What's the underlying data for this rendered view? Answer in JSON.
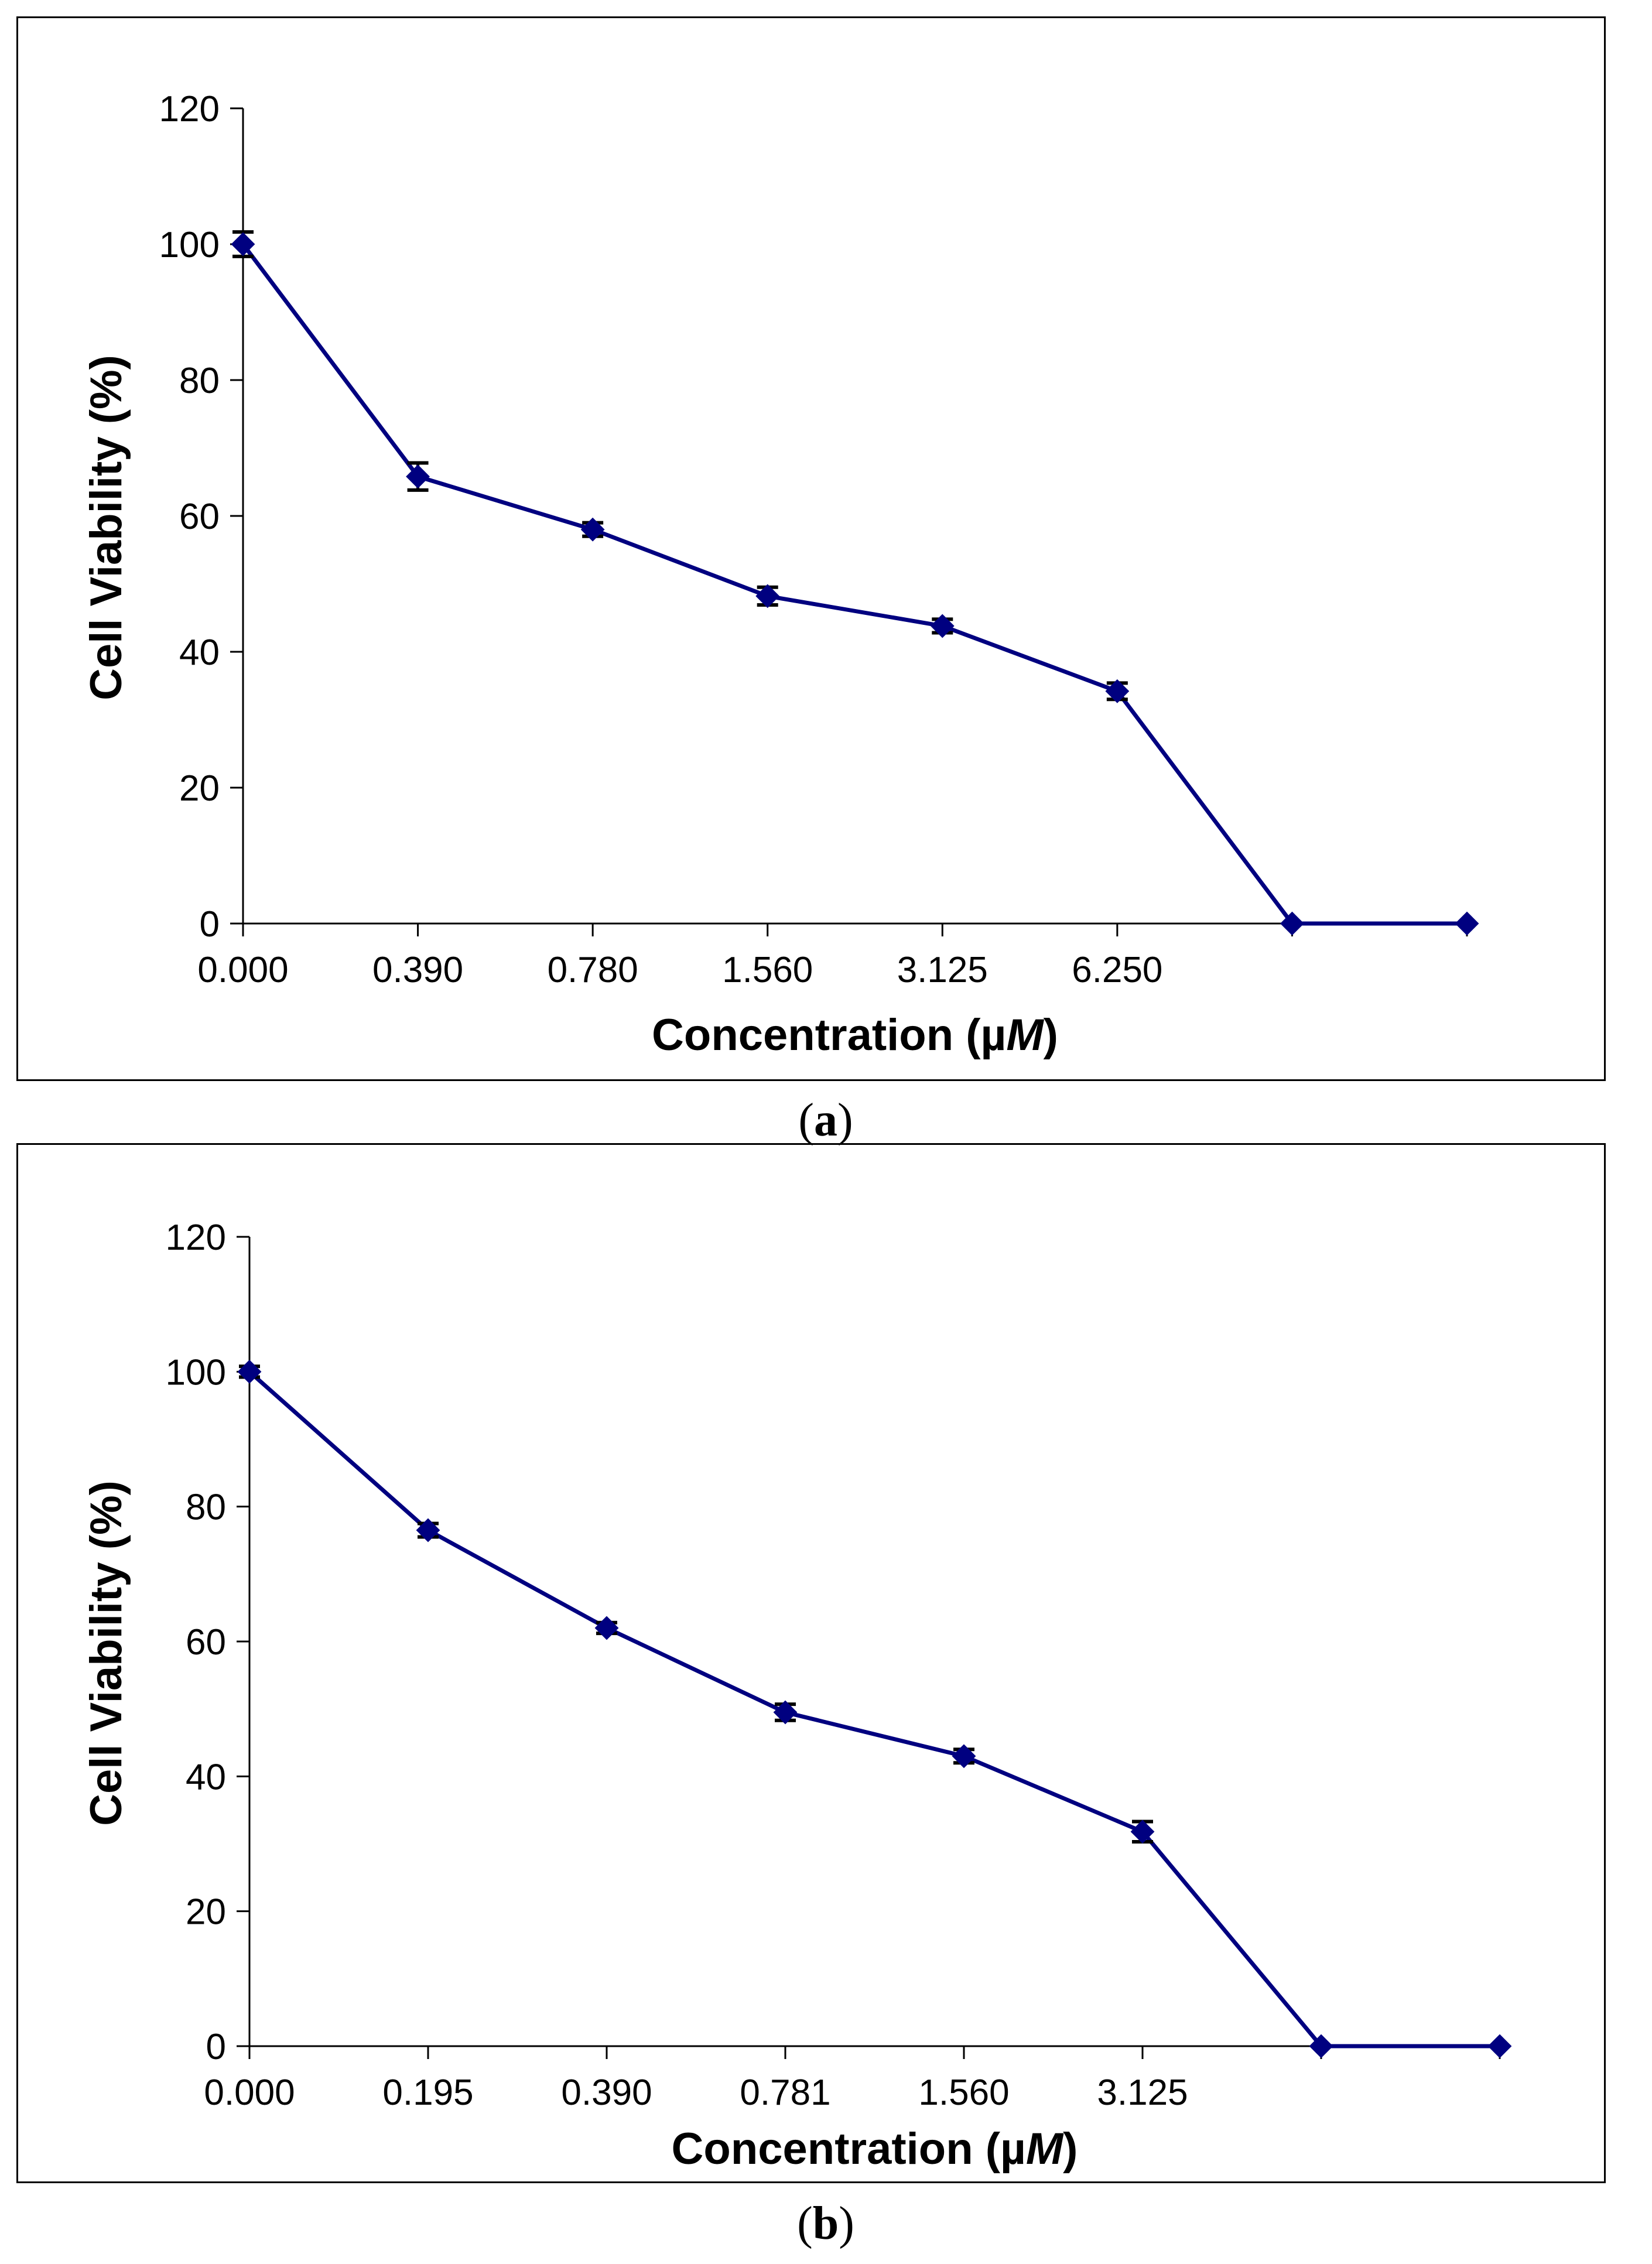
{
  "chart_data": [
    {
      "panel": "a",
      "caption": "a",
      "type": "line",
      "categories": [
        "0.000",
        "0.390",
        "0.780",
        "1.560",
        "3.125",
        "6.250",
        "",
        ""
      ],
      "series": [
        {
          "name": "Cell Viability",
          "color": "#000080",
          "values": [
            100,
            65.8,
            58,
            48.2,
            43.8,
            34.2,
            0,
            0
          ],
          "errors": [
            1.8,
            2.0,
            1.0,
            1.3,
            1.0,
            1.2,
            0,
            0
          ]
        }
      ],
      "xlabel_prefix": "Concentration (µ",
      "xlabel_unit": "M",
      "xlabel_suffix": ")",
      "ylabel": "Cell Viability (%)",
      "ylim": [
        0,
        120
      ],
      "yticks": [
        0,
        20,
        40,
        60,
        80,
        100,
        120
      ],
      "grid": false
    },
    {
      "panel": "b",
      "caption": "b",
      "type": "line",
      "categories": [
        "0.000",
        "0.195",
        "0.390",
        "0.781",
        "1.560",
        "3.125",
        "",
        ""
      ],
      "series": [
        {
          "name": "Cell Viability",
          "color": "#000080",
          "values": [
            100,
            76.5,
            62,
            49.5,
            43,
            31.8,
            0,
            0
          ],
          "errors": [
            0.8,
            1.0,
            0.8,
            1.2,
            1.0,
            1.5,
            0,
            0
          ]
        }
      ],
      "xlabel_prefix": "Concentration (µ",
      "xlabel_unit": "M",
      "xlabel_suffix": ")",
      "ylabel": "Cell Viability (%)",
      "ylim": [
        0,
        120
      ],
      "yticks": [
        0,
        20,
        40,
        60,
        80,
        100,
        120
      ],
      "grid": false
    }
  ]
}
